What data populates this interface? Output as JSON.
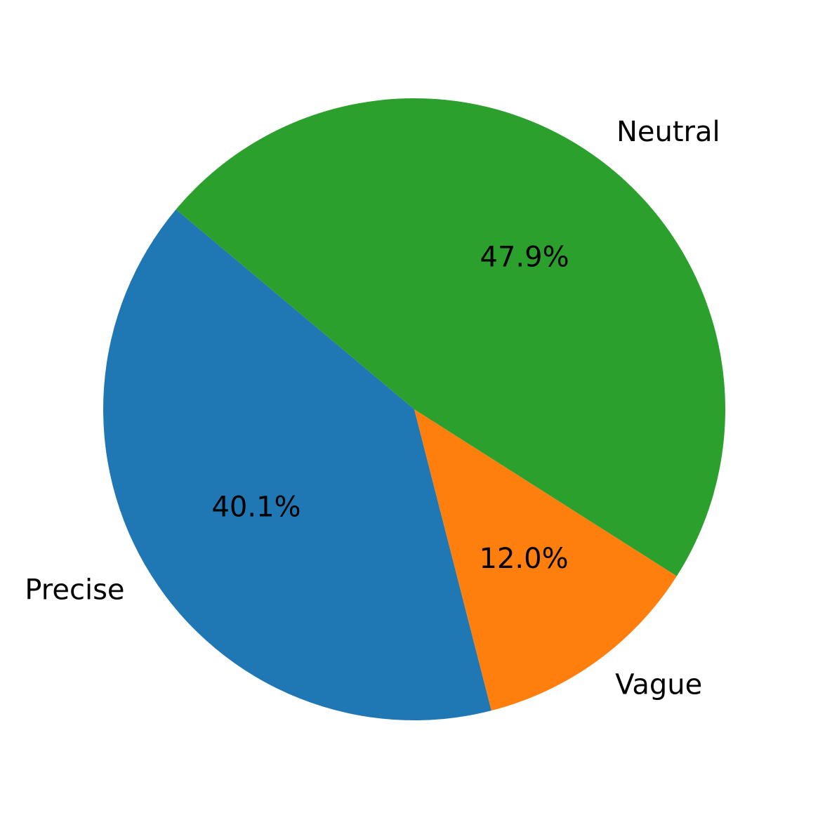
{
  "chart_data": {
    "type": "pie",
    "categories": [
      "Precise",
      "Vague",
      "Neutral"
    ],
    "values": [
      40.1,
      12.0,
      47.9
    ],
    "value_labels": [
      "40.1%",
      "12.0%",
      "47.9%"
    ],
    "colors": [
      "#1f77b4",
      "#ff7f0e",
      "#2ca02c"
    ],
    "title": "",
    "legend": "none",
    "start_angle_deg": 140
  }
}
